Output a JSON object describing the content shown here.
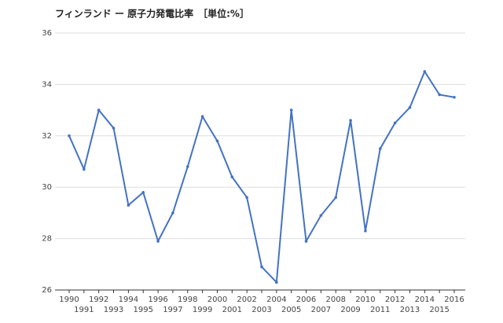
{
  "chart_data": {
    "type": "line",
    "title": "フィンランド ー 原子力発電比率　［単位:%］",
    "x": [
      1990,
      1991,
      1992,
      1993,
      1994,
      1995,
      1996,
      1997,
      1998,
      1999,
      2000,
      2001,
      2002,
      2003,
      2004,
      2005,
      2006,
      2007,
      2008,
      2009,
      2010,
      2011,
      2012,
      2013,
      2014,
      2015,
      2016
    ],
    "series": [
      {
        "name": "原子力発電比率",
        "color": "#4472c4",
        "values": [
          32.0,
          30.7,
          33.0,
          32.3,
          29.3,
          29.8,
          27.9,
          29.0,
          30.8,
          32.75,
          31.8,
          30.4,
          29.6,
          26.9,
          26.3,
          33.0,
          27.9,
          28.9,
          29.6,
          32.6,
          28.3,
          31.5,
          32.5,
          33.1,
          34.5,
          33.6,
          33.5
        ]
      }
    ],
    "xlim": [
      1990,
      2016
    ],
    "xticks": [
      1990,
      1991,
      1992,
      1993,
      1994,
      1995,
      1996,
      1997,
      1998,
      1999,
      2000,
      2001,
      2002,
      2003,
      2004,
      2005,
      2006,
      2007,
      2008,
      2009,
      2010,
      2011,
      2012,
      2013,
      2014,
      2015,
      2016
    ],
    "ylim": [
      26,
      36
    ],
    "yticks": [
      26,
      28,
      30,
      32,
      34,
      36
    ],
    "grid": true
  }
}
